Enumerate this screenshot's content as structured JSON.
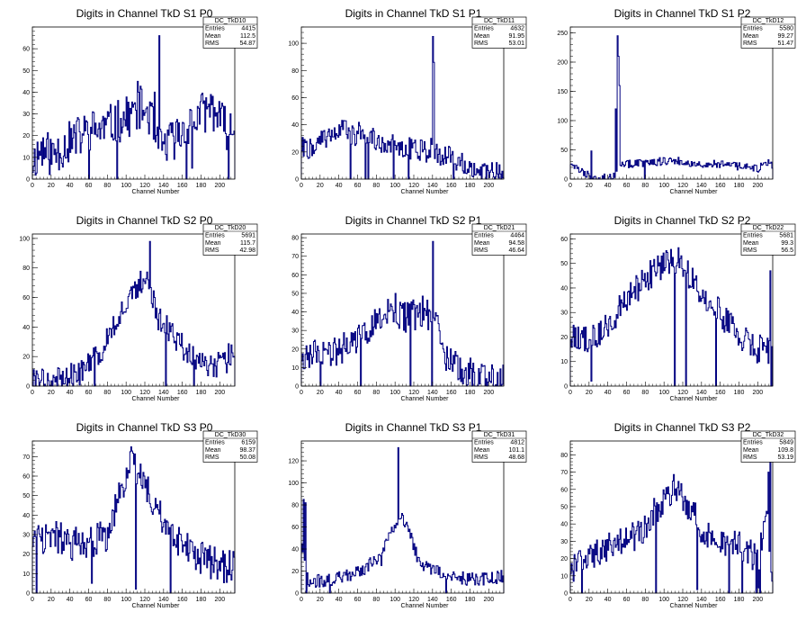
{
  "colors": {
    "line": "#000080",
    "frame": "#000000",
    "background": "#ffffff"
  },
  "chart_data": [
    {
      "type": "histogram",
      "title": "Digits in Channel TkD S1 P0",
      "stats_name": "DC_TkD10",
      "stats": {
        "Entries": "4415",
        "Mean": "112.5",
        "RMS": "54.87"
      },
      "xlabel": "Channel Number",
      "xlim": [
        0,
        216
      ],
      "ylim": [
        0,
        70
      ],
      "xticks": [
        0,
        20,
        40,
        60,
        80,
        100,
        120,
        140,
        160,
        180,
        200
      ],
      "yticks": [
        0,
        10,
        20,
        30,
        40,
        50,
        60
      ],
      "spikes": [
        [
          135,
          66
        ],
        [
          112,
          45
        ],
        [
          130,
          40
        ],
        [
          170,
          5
        ]
      ],
      "profile": [
        [
          0,
          8
        ],
        [
          10,
          14
        ],
        [
          20,
          11
        ],
        [
          30,
          14
        ],
        [
          40,
          17
        ],
        [
          60,
          22
        ],
        [
          80,
          24
        ],
        [
          100,
          28
        ],
        [
          115,
          33
        ],
        [
          125,
          30
        ],
        [
          135,
          14
        ],
        [
          150,
          18
        ],
        [
          165,
          24
        ],
        [
          180,
          30
        ],
        [
          192,
          33
        ],
        [
          205,
          24
        ],
        [
          216,
          22
        ]
      ],
      "noise": 10,
      "seed": 11
    },
    {
      "type": "histogram",
      "title": "Digits in Channel TkD S1 P1",
      "stats_name": "DC_TkD11",
      "stats": {
        "Entries": "4632",
        "Mean": "91.95",
        "RMS": "53.01"
      },
      "xlabel": "Channel Number",
      "xlim": [
        0,
        216
      ],
      "ylim": [
        0,
        112
      ],
      "xticks": [
        0,
        20,
        40,
        60,
        80,
        100,
        120,
        140,
        160,
        180,
        200
      ],
      "yticks": [
        0,
        20,
        40,
        60,
        80,
        100
      ],
      "spikes": [
        [
          140,
          105
        ],
        [
          141,
          86
        ],
        [
          138,
          30
        ]
      ],
      "profile": [
        [
          0,
          25
        ],
        [
          10,
          22
        ],
        [
          20,
          28
        ],
        [
          40,
          38
        ],
        [
          55,
          32
        ],
        [
          65,
          35
        ],
        [
          80,
          28
        ],
        [
          100,
          26
        ],
        [
          120,
          22
        ],
        [
          135,
          20
        ],
        [
          145,
          18
        ],
        [
          160,
          16
        ],
        [
          180,
          10
        ],
        [
          200,
          6
        ],
        [
          216,
          3
        ]
      ],
      "noise": 8,
      "seed": 22
    },
    {
      "type": "histogram",
      "title": "Digits in Channel TkD S1 P2",
      "stats_name": "DC_TkD12",
      "stats": {
        "Entries": "5580",
        "Mean": "99.27",
        "RMS": "51.47"
      },
      "xlabel": "Channel Number",
      "xlim": [
        0,
        216
      ],
      "ylim": [
        0,
        260
      ],
      "xticks": [
        0,
        20,
        40,
        60,
        80,
        100,
        120,
        140,
        160,
        180,
        200
      ],
      "yticks": [
        0,
        50,
        100,
        150,
        200,
        250
      ],
      "spikes": [
        [
          50,
          245
        ],
        [
          51,
          210
        ],
        [
          52,
          160
        ],
        [
          48,
          120
        ],
        [
          22,
          48
        ]
      ],
      "profile": [
        [
          0,
          30
        ],
        [
          5,
          20
        ],
        [
          15,
          10
        ],
        [
          30,
          2
        ],
        [
          45,
          3
        ],
        [
          55,
          25
        ],
        [
          80,
          28
        ],
        [
          110,
          32
        ],
        [
          140,
          26
        ],
        [
          170,
          24
        ],
        [
          200,
          18
        ],
        [
          210,
          28
        ],
        [
          216,
          22
        ]
      ],
      "noise": 7,
      "seed": 33
    },
    {
      "type": "histogram",
      "title": "Digits in Channel TkD S2 P0",
      "stats_name": "DC_TkD20",
      "stats": {
        "Entries": "5691",
        "Mean": "115.7",
        "RMS": "42.98"
      },
      "xlabel": "Channel Number",
      "xlim": [
        0,
        216
      ],
      "ylim": [
        0,
        103
      ],
      "xticks": [
        0,
        20,
        40,
        60,
        80,
        100,
        120,
        140,
        160,
        180,
        200
      ],
      "yticks": [
        0,
        20,
        40,
        60,
        80,
        100
      ],
      "spikes": [
        [
          125,
          98
        ]
      ],
      "profile": [
        [
          0,
          3
        ],
        [
          30,
          5
        ],
        [
          55,
          10
        ],
        [
          70,
          20
        ],
        [
          90,
          45
        ],
        [
          105,
          60
        ],
        [
          115,
          70
        ],
        [
          125,
          70
        ],
        [
          135,
          45
        ],
        [
          150,
          35
        ],
        [
          165,
          22
        ],
        [
          185,
          12
        ],
        [
          205,
          15
        ],
        [
          216,
          28
        ]
      ],
      "noise": 9,
      "seed": 44
    },
    {
      "type": "histogram",
      "title": "Digits in Channel TkD S2 P1",
      "stats_name": "DC_TkD21",
      "stats": {
        "Entries": "4464",
        "Mean": "94.58",
        "RMS": "46.64"
      },
      "xlabel": "Channel Number",
      "xlim": [
        0,
        216
      ],
      "ylim": [
        0,
        82
      ],
      "xticks": [
        0,
        20,
        40,
        60,
        80,
        100,
        120,
        140,
        160,
        180,
        200
      ],
      "yticks": [
        0,
        10,
        20,
        30,
        40,
        50,
        60,
        70,
        80
      ],
      "spikes": [
        [
          140,
          78
        ],
        [
          100,
          50
        ],
        [
          110,
          45
        ]
      ],
      "profile": [
        [
          0,
          18
        ],
        [
          20,
          15
        ],
        [
          40,
          20
        ],
        [
          60,
          27
        ],
        [
          80,
          35
        ],
        [
          95,
          40
        ],
        [
          110,
          35
        ],
        [
          125,
          40
        ],
        [
          145,
          38
        ],
        [
          155,
          15
        ],
        [
          170,
          10
        ],
        [
          190,
          5
        ],
        [
          216,
          3
        ]
      ],
      "noise": 9,
      "seed": 55
    },
    {
      "type": "histogram",
      "title": "Digits in Channel TkD S2 P2",
      "stats_name": "DC_TkD22",
      "stats": {
        "Entries": "5681",
        "Mean": "99.3",
        "RMS": "56.5"
      },
      "xlabel": "Channel Number",
      "xlim": [
        0,
        216
      ],
      "ylim": [
        0,
        62
      ],
      "xticks": [
        0,
        20,
        40,
        60,
        80,
        100,
        120,
        140,
        160,
        180,
        200
      ],
      "yticks": [
        0,
        10,
        20,
        30,
        40,
        50,
        60
      ],
      "spikes": [
        [
          213,
          47
        ],
        [
          22,
          2
        ]
      ],
      "profile": [
        [
          0,
          22
        ],
        [
          20,
          18
        ],
        [
          40,
          24
        ],
        [
          60,
          35
        ],
        [
          80,
          44
        ],
        [
          100,
          50
        ],
        [
          115,
          52
        ],
        [
          130,
          44
        ],
        [
          150,
          34
        ],
        [
          175,
          22
        ],
        [
          195,
          16
        ],
        [
          210,
          14
        ],
        [
          216,
          12
        ]
      ],
      "noise": 6,
      "seed": 66
    },
    {
      "type": "histogram",
      "title": "Digits in Channel TkD S3 P0",
      "stats_name": "DC_TkD30",
      "stats": {
        "Entries": "6159",
        "Mean": "98.37",
        "RMS": "50.08"
      },
      "xlabel": "Channel Number",
      "xlim": [
        0,
        216
      ],
      "ylim": [
        0,
        78
      ],
      "xticks": [
        0,
        20,
        40,
        60,
        80,
        100,
        120,
        140,
        160,
        180,
        200
      ],
      "yticks": [
        0,
        10,
        20,
        30,
        40,
        50,
        60,
        70
      ],
      "spikes": [
        [
          110,
          2
        ],
        [
          63,
          5
        ],
        [
          105,
          75
        ]
      ],
      "profile": [
        [
          0,
          28
        ],
        [
          20,
          30
        ],
        [
          40,
          25
        ],
        [
          60,
          25
        ],
        [
          80,
          30
        ],
        [
          95,
          55
        ],
        [
          105,
          65
        ],
        [
          115,
          60
        ],
        [
          130,
          45
        ],
        [
          145,
          30
        ],
        [
          160,
          25
        ],
        [
          180,
          18
        ],
        [
          200,
          14
        ],
        [
          216,
          15
        ]
      ],
      "noise": 9,
      "seed": 77
    },
    {
      "type": "histogram",
      "title": "Digits in Channel TkD S3 P1",
      "stats_name": "DC_TkD31",
      "stats": {
        "Entries": "4812",
        "Mean": "101.1",
        "RMS": "48.68"
      },
      "xlabel": "Channel Number",
      "xlim": [
        0,
        216
      ],
      "ylim": [
        0,
        138
      ],
      "xticks": [
        0,
        20,
        40,
        60,
        80,
        100,
        120,
        140,
        160,
        180,
        200
      ],
      "yticks": [
        0,
        20,
        40,
        60,
        80,
        100,
        120
      ],
      "spikes": [
        [
          103,
          132
        ],
        [
          2,
          85
        ],
        [
          4,
          82
        ],
        [
          85,
          25
        ]
      ],
      "profile": [
        [
          0,
          50
        ],
        [
          8,
          10
        ],
        [
          30,
          12
        ],
        [
          60,
          18
        ],
        [
          80,
          30
        ],
        [
          95,
          55
        ],
        [
          105,
          70
        ],
        [
          115,
          55
        ],
        [
          125,
          30
        ],
        [
          140,
          20
        ],
        [
          160,
          15
        ],
        [
          185,
          12
        ],
        [
          216,
          15
        ]
      ],
      "noise": 6,
      "seed": 88
    },
    {
      "type": "histogram",
      "title": "Digits in Channel TkD S3 P2",
      "stats_name": "DC_TkD32",
      "stats": {
        "Entries": "5849",
        "Mean": "109.8",
        "RMS": "53.19"
      },
      "xlabel": "Channel Number",
      "xlim": [
        0,
        216
      ],
      "ylim": [
        0,
        88
      ],
      "xticks": [
        0,
        20,
        40,
        60,
        80,
        100,
        120,
        140,
        160,
        180,
        200
      ],
      "yticks": [
        0,
        10,
        20,
        30,
        40,
        50,
        60,
        70,
        80
      ],
      "spikes": [
        [
          213,
          88
        ],
        [
          211,
          70
        ],
        [
          135,
          2
        ],
        [
          200,
          3
        ]
      ],
      "profile": [
        [
          0,
          15
        ],
        [
          20,
          18
        ],
        [
          40,
          28
        ],
        [
          60,
          30
        ],
        [
          80,
          38
        ],
        [
          100,
          55
        ],
        [
          112,
          62
        ],
        [
          125,
          50
        ],
        [
          140,
          38
        ],
        [
          160,
          30
        ],
        [
          180,
          28
        ],
        [
          200,
          18
        ],
        [
          210,
          45
        ],
        [
          216,
          5
        ]
      ],
      "noise": 9,
      "seed": 99
    }
  ]
}
